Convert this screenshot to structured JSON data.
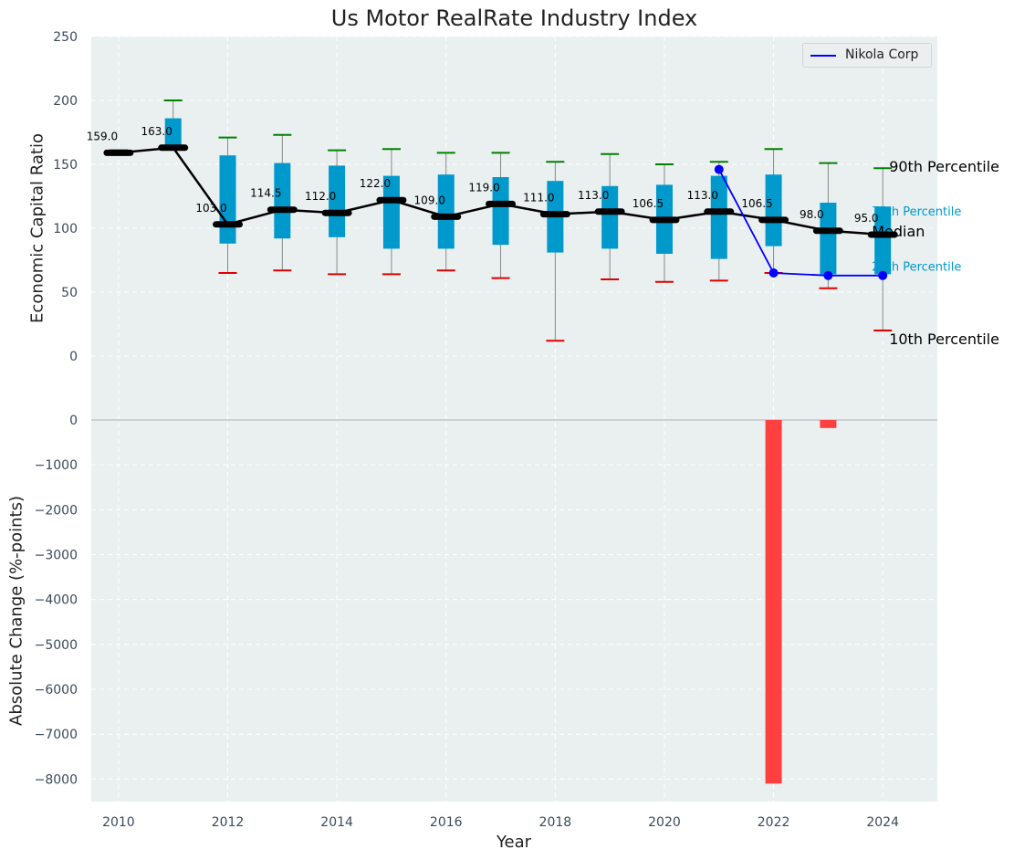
{
  "chart_data": {
    "type": "box",
    "title": "Us Motor RealRate Industry Index",
    "xlabel": "Year",
    "top_panel": {
      "ylabel": "Economic Capital Ratio",
      "ylim": [
        -50,
        250
      ],
      "yticks": [
        0,
        50,
        100,
        150,
        200,
        250
      ],
      "years": [
        2010,
        2011,
        2012,
        2013,
        2014,
        2015,
        2016,
        2017,
        2018,
        2019,
        2020,
        2021,
        2022,
        2023,
        2024
      ],
      "median": [
        159.0,
        163.0,
        103.0,
        114.5,
        112.0,
        122.0,
        109.0,
        119.0,
        111.0,
        113.0,
        106.5,
        113.0,
        106.5,
        98.0,
        95.0
      ],
      "median_labels": [
        "159.0",
        "163.0",
        "103.0",
        "114.5",
        "112.0",
        "122.0",
        "109.0",
        "119.0",
        "111.0",
        "113.0",
        "106.5",
        "113.0",
        "106.5",
        "98.0",
        "95.0"
      ],
      "p10": [
        159,
        163,
        65,
        67,
        64,
        64,
        67,
        61,
        12,
        60,
        58,
        59,
        65,
        53,
        20
      ],
      "p25": [
        159,
        163,
        88,
        92,
        93,
        84,
        84,
        87,
        81,
        84,
        80,
        76,
        86,
        64,
        64
      ],
      "p75": [
        159,
        186,
        157,
        151,
        149,
        141,
        142,
        140,
        137,
        133,
        134,
        141,
        142,
        120,
        117
      ],
      "p90": [
        161,
        200,
        171,
        173,
        161,
        162,
        159,
        159,
        152,
        158,
        150,
        152,
        162,
        151,
        147
      ],
      "series": [
        {
          "name": "Nikola Corp",
          "x": [
            2021,
            2022,
            2023,
            2024
          ],
          "values": [
            146,
            65,
            63,
            63
          ]
        }
      ],
      "legend_position": "top-right",
      "annotations": {
        "p90": "90th Percentile",
        "p75": "75th Percentile",
        "median": "Median",
        "p25": "25th Percentile",
        "p10": "10th Percentile"
      },
      "grid": true
    },
    "bottom_panel": {
      "ylabel": "Absolute Change (%-points)",
      "ylim": [
        -8500,
        0
      ],
      "yticks": [
        0,
        -1000,
        -2000,
        -3000,
        -4000,
        -5000,
        -6000,
        -7000,
        -8000
      ],
      "ytick_labels": [
        "0",
        "−1000",
        "−2000",
        "−3000",
        "−4000",
        "−5000",
        "−6000",
        "−7000",
        "−8000"
      ],
      "bars": [
        {
          "x": 2022,
          "value": -8100
        },
        {
          "x": 2023,
          "value": -180
        }
      ],
      "grid": true
    },
    "xlim": [
      2009.5,
      2025
    ],
    "xticks": [
      2010,
      2012,
      2014,
      2016,
      2018,
      2020,
      2022,
      2024
    ],
    "colors": {
      "background": "#eaeff0",
      "box": "#0099cc",
      "median": "#000000",
      "p90_cap": "#008000",
      "p10_cap": "#e00000",
      "whisker": "#888888",
      "series": "#0000ff",
      "bars": "#ff4040",
      "p_annotation": "#0099cc"
    }
  }
}
